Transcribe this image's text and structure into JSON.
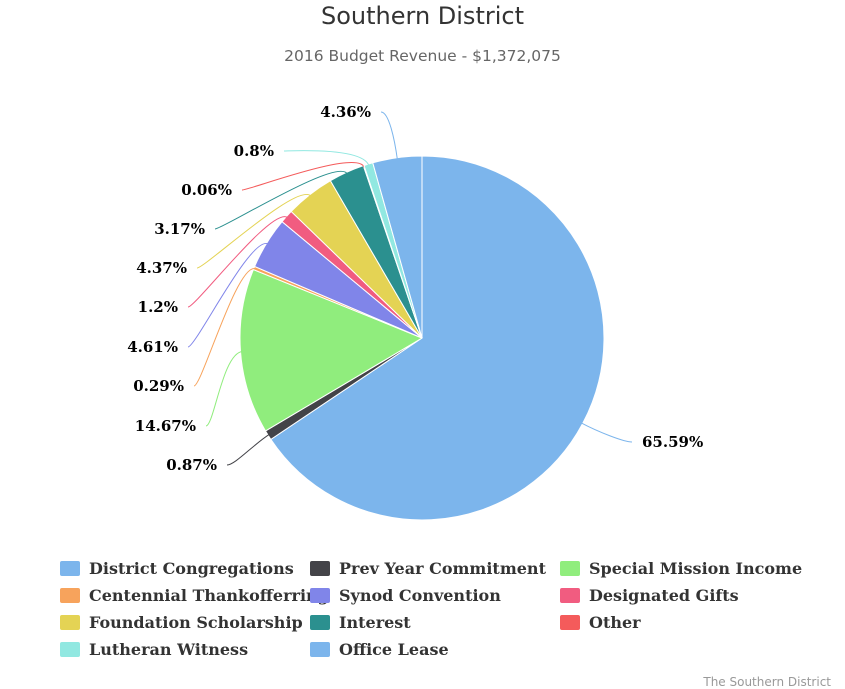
{
  "chart_data": {
    "type": "pie",
    "title": "Southern District",
    "subtitle": "2016 Budget Revenue - $1,372,075",
    "credits": "The Southern District",
    "label_suffix": "%",
    "legend_position": "bottom",
    "slices": [
      {
        "name": "District Congregations",
        "value": 65.59,
        "color": "#7cb5ec"
      },
      {
        "name": "Prev Year Commitment",
        "value": 0.87,
        "color": "#434348"
      },
      {
        "name": "Special Mission Income",
        "value": 14.67,
        "color": "#90ed7d"
      },
      {
        "name": "Centennial Thankofferring",
        "value": 0.29,
        "color": "#f7a35c"
      },
      {
        "name": "Synod Convention",
        "value": 4.61,
        "color": "#8085e9"
      },
      {
        "name": "Designated Gifts",
        "value": 1.2,
        "color": "#f15c80"
      },
      {
        "name": "Foundation Scholarship",
        "value": 4.37,
        "color": "#e4d354"
      },
      {
        "name": "Interest",
        "value": 3.17,
        "color": "#2b908f"
      },
      {
        "name": "Other",
        "value": 0.06,
        "color": "#f45b5b"
      },
      {
        "name": "Lutheran Witness",
        "value": 0.8,
        "color": "#91e8e1"
      },
      {
        "name": "Office Lease",
        "value": 4.36,
        "color": "#7cb5ec"
      }
    ]
  }
}
